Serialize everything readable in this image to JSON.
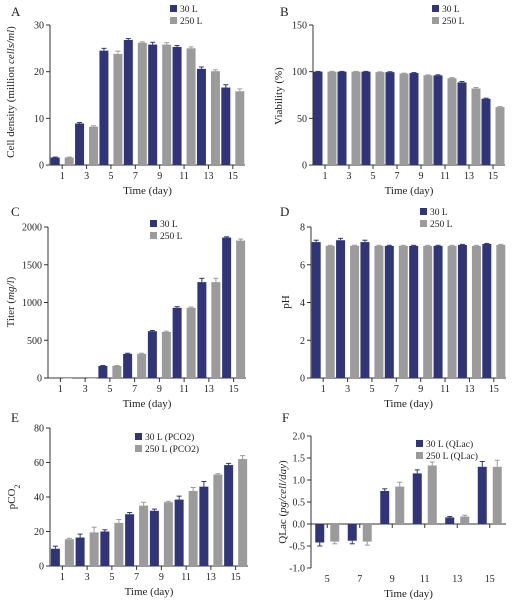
{
  "colors": {
    "series_30": "#303578",
    "series_250": "#9b9b9b",
    "axis": "#333333"
  },
  "chart_data": [
    {
      "panel": "A",
      "type": "bar",
      "xlabel": "Time (day)",
      "ylabel": "Cell density (million cells/ml)",
      "ylabel_parts": [
        {
          "t": "Cell density (million "
        },
        {
          "t": "cells/ml",
          "italic": true
        },
        {
          "t": ")"
        }
      ],
      "ylim": [
        0,
        30
      ],
      "yticks": [
        0,
        10,
        20,
        30
      ],
      "categories": [
        "1",
        "3",
        "5",
        "7",
        "9",
        "11",
        "13",
        "15"
      ],
      "legend_position": "top-center",
      "series": [
        {
          "name": "30 L",
          "values": [
            1.6,
            8.9,
            24.5,
            26.8,
            25.8,
            25.3,
            20.6,
            16.6
          ],
          "errors": [
            0.1,
            0.2,
            0.5,
            0.3,
            0.5,
            0.3,
            0.4,
            0.6
          ]
        },
        {
          "name": "250 L",
          "values": [
            1.6,
            8.2,
            23.8,
            26.2,
            25.8,
            25.0,
            20.1,
            15.8
          ],
          "errors": [
            0.1,
            0.2,
            0.6,
            0.2,
            0.4,
            0.3,
            0.3,
            0.5
          ]
        }
      ]
    },
    {
      "panel": "B",
      "type": "bar",
      "xlabel": "Time (day)",
      "ylabel": "Viability (%)",
      "ylabel_parts": [
        {
          "t": "Viability (%)"
        }
      ],
      "ylim": [
        0,
        150
      ],
      "yticks": [
        0,
        50,
        100,
        150
      ],
      "categories": [
        "1",
        "3",
        "5",
        "7",
        "9",
        "11",
        "13",
        "15"
      ],
      "legend_position": "top-center",
      "series": [
        {
          "name": "30 L",
          "values": [
            100,
            100,
            100,
            99.5,
            98.5,
            96,
            88.5,
            71
          ],
          "errors": [
            0.3,
            0.3,
            0.3,
            0.4,
            0.5,
            0.6,
            1.0,
            0.6
          ]
        },
        {
          "name": "250 L",
          "values": [
            100,
            100,
            99.5,
            98,
            96,
            93,
            82,
            62
          ],
          "errors": [
            0.3,
            0.3,
            0.3,
            0.4,
            0.5,
            0.6,
            1.0,
            0.6
          ]
        }
      ]
    },
    {
      "panel": "C",
      "type": "bar",
      "xlabel": "Time (day)",
      "ylabel": "Titer (mg/l)",
      "ylabel_parts": [
        {
          "t": "Titer ("
        },
        {
          "t": "mg/l",
          "italic": true
        },
        {
          "t": ")"
        }
      ],
      "ylim": [
        0,
        2000
      ],
      "yticks": [
        0,
        500,
        1000,
        1500,
        2000
      ],
      "categories": [
        "1",
        "3",
        "5",
        "7",
        "9",
        "11",
        "13",
        "15"
      ],
      "legend_position": "top-center",
      "series": [
        {
          "name": "30 L",
          "values": [
            0,
            0,
            160,
            320,
            620,
            930,
            1270,
            1860
          ],
          "errors": [
            0,
            0,
            5,
            8,
            10,
            15,
            50,
            10
          ]
        },
        {
          "name": "250 L",
          "values": [
            0,
            0,
            160,
            320,
            610,
            930,
            1270,
            1820
          ],
          "errors": [
            0,
            0,
            5,
            8,
            10,
            10,
            50,
            20
          ]
        }
      ]
    },
    {
      "panel": "D",
      "type": "bar",
      "xlabel": "Time (day)",
      "ylabel": "pH",
      "ylabel_parts": [
        {
          "t": "pH"
        }
      ],
      "ylim": [
        0,
        8
      ],
      "yticks": [
        0,
        2,
        4,
        6,
        8
      ],
      "categories": [
        "1",
        "3",
        "5",
        "7",
        "9",
        "11",
        "13",
        "15"
      ],
      "legend_position": "top-center",
      "series": [
        {
          "name": "30 L",
          "values": [
            7.2,
            7.3,
            7.2,
            7.0,
            7.0,
            7.0,
            7.05,
            7.1
          ],
          "errors": [
            0.1,
            0.1,
            0.1,
            0.03,
            0.03,
            0.03,
            0.03,
            0.03
          ]
        },
        {
          "name": "250 L",
          "values": [
            7.0,
            7.0,
            7.0,
            7.0,
            7.0,
            7.0,
            7.0,
            7.05
          ],
          "errors": [
            0.03,
            0.03,
            0.03,
            0.03,
            0.03,
            0.03,
            0.03,
            0.03
          ]
        }
      ]
    },
    {
      "panel": "E",
      "type": "bar",
      "xlabel": "Time (day)",
      "ylabel": "pCO2",
      "ylabel_parts": [
        {
          "t": "pCO"
        },
        {
          "t": "2",
          "sub": true
        }
      ],
      "ylim": [
        0,
        80
      ],
      "yticks": [
        0,
        20,
        40,
        60,
        80
      ],
      "categories": [
        "1",
        "3",
        "5",
        "7",
        "9",
        "11",
        "13",
        "15"
      ],
      "legend_position": "top-center",
      "series": [
        {
          "name": "30 L (PCO2)",
          "values": [
            10,
            16.5,
            20,
            30,
            32,
            38.5,
            46,
            58.5
          ],
          "errors": [
            1.5,
            2,
            1,
            1,
            1,
            2,
            3,
            1
          ]
        },
        {
          "name": "250 L (PCO2)",
          "values": [
            15.5,
            19.5,
            25,
            35,
            37,
            43.5,
            53,
            62
          ],
          "errors": [
            0.5,
            3,
            2,
            2,
            0.5,
            2,
            0.5,
            2
          ]
        }
      ]
    },
    {
      "panel": "F",
      "type": "bar",
      "xlabel": "Time (day)",
      "ylabel": "QLac (pg/cell/day)",
      "ylabel_parts": [
        {
          "t": "QLac ("
        },
        {
          "t": "pg/cell/day",
          "italic": true
        },
        {
          "t": ")"
        }
      ],
      "ylim": [
        -1.0,
        2.0
      ],
      "yticks": [
        -1.0,
        -0.5,
        0.0,
        0.5,
        1.0,
        1.5,
        2.0
      ],
      "ytick_labels": [
        "-1.0",
        "-0.5",
        "0.0",
        "0.5",
        "1.0",
        "1.5",
        "2.0"
      ],
      "categories": [
        "5",
        "7",
        "9",
        "11",
        "13",
        "15"
      ],
      "legend_position": "top-center",
      "series": [
        {
          "name": "30 L (QLac)",
          "values": [
            -0.42,
            -0.38,
            0.75,
            1.15,
            0.15,
            1.3
          ],
          "errors": [
            0.08,
            0.07,
            0.05,
            0.08,
            0.02,
            0.12
          ]
        },
        {
          "name": "250 L (QLac)",
          "values": [
            -0.4,
            -0.4,
            0.85,
            1.33,
            0.17,
            1.3
          ],
          "errors": [
            0.05,
            0.08,
            0.1,
            0.08,
            0.03,
            0.15
          ]
        }
      ]
    }
  ]
}
